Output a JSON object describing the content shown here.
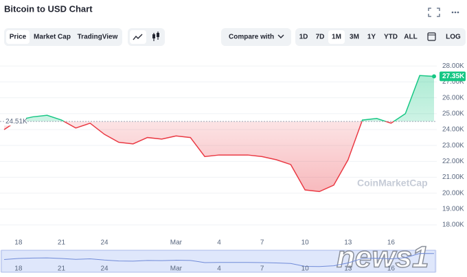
{
  "header": {
    "title": "Bitcoin to USD Chart",
    "tabs": [
      "Price",
      "Market Cap",
      "TradingView"
    ],
    "compare": "Compare with",
    "ranges": [
      "1D",
      "7D",
      "1M",
      "3M",
      "1Y",
      "YTD",
      "ALL"
    ],
    "log": "LOG"
  },
  "chart_data": {
    "type": "line",
    "categories": [
      null,
      "18",
      null,
      null,
      "21",
      null,
      null,
      "24",
      null,
      null,
      null,
      null,
      "Mar",
      null,
      null,
      "4",
      null,
      null,
      "7",
      null,
      null,
      "10",
      null,
      null,
      "13",
      null,
      null,
      "16",
      null,
      null,
      null
    ],
    "values": [
      24.0,
      24.6,
      24.8,
      24.9,
      24.6,
      24.1,
      24.4,
      23.7,
      23.2,
      23.1,
      23.5,
      23.4,
      23.6,
      23.5,
      22.3,
      22.4,
      22.4,
      22.4,
      22.3,
      22.1,
      21.8,
      20.2,
      20.1,
      20.5,
      22.1,
      24.6,
      24.7,
      24.4,
      25.0,
      27.4,
      27.35
    ],
    "ylim": [
      17.7,
      28.4
    ],
    "yticks": [
      {
        "value": 18,
        "label": "18.00K"
      },
      {
        "value": 19,
        "label": "19.00K"
      },
      {
        "value": 20,
        "label": "20.00K"
      },
      {
        "value": 21,
        "label": "21.00K"
      },
      {
        "value": 22,
        "label": "22.00K"
      },
      {
        "value": 23,
        "label": "23.00K"
      },
      {
        "value": 24,
        "label": "24.00K"
      },
      {
        "value": 25,
        "label": "25.00K"
      },
      {
        "value": 26,
        "label": "26.00K"
      },
      {
        "value": 27,
        "label": "27.00K"
      },
      {
        "value": 28,
        "label": "28.00K"
      }
    ],
    "grid": true,
    "baseline": {
      "value": 24.51,
      "label": "24.51K"
    },
    "last_label": "27.35K",
    "up_color": "#16c784",
    "down_color": "#ea3943",
    "watermark": "CoinMarketCap"
  },
  "overlay": "news1"
}
